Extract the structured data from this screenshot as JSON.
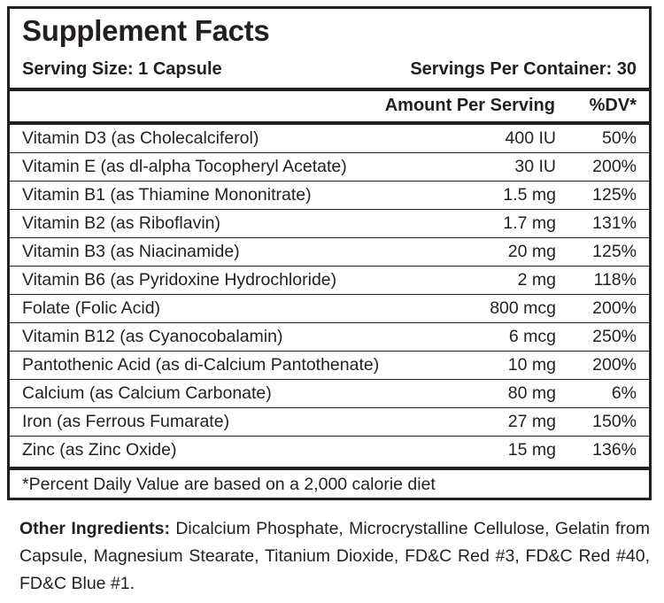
{
  "label": {
    "title": "Supplement Facts",
    "serving_size": "Serving Size: 1 Capsule",
    "servings_per_container": "Servings Per Container: 30",
    "col_amount": "Amount Per Serving",
    "col_dv": "%DV*",
    "rows": [
      {
        "name": "Vitamin D3 (as Cholecalciferol)",
        "amount": "400 IU",
        "dv": "50%"
      },
      {
        "name": "Vitamin E (as dl-alpha Tocopheryl Acetate)",
        "amount": "30 IU",
        "dv": "200%"
      },
      {
        "name": "Vitamin B1 (as Thiamine Mononitrate)",
        "amount": "1.5 mg",
        "dv": "125%"
      },
      {
        "name": "Vitamin B2 (as Riboflavin)",
        "amount": "1.7 mg",
        "dv": "131%"
      },
      {
        "name": "Vitamin B3 (as Niacinamide)",
        "amount": "20 mg",
        "dv": "125%"
      },
      {
        "name": "Vitamin B6 (as Pyridoxine Hydrochloride)",
        "amount": "2 mg",
        "dv": "118%"
      },
      {
        "name": "Folate (Folic Acid)",
        "amount": "800 mcg",
        "dv": "200%"
      },
      {
        "name": "Vitamin B12 (as Cyanocobalamin)",
        "amount": "6 mcg",
        "dv": "250%"
      },
      {
        "name": "Pantothenic Acid (as di-Calcium Pantothenate)",
        "amount": "10 mg",
        "dv": "200%"
      },
      {
        "name": "Calcium (as Calcium Carbonate)",
        "amount": "80 mg",
        "dv": "6%"
      },
      {
        "name": "Iron (as Ferrous Fumarate)",
        "amount": "27 mg",
        "dv": "150%"
      },
      {
        "name": "Zinc (as Zinc Oxide)",
        "amount": "15 mg",
        "dv": "136%"
      }
    ],
    "footnote": "*Percent Daily Value are based on a 2,000 calorie diet"
  },
  "other_ingredients": {
    "heading": "Other Ingredients:",
    "text": "Dicalcium Phosphate, Microcrystalline Cellulose, Gelatin from Capsule, Magnesium Stearate, Titanium Dioxide, FD&C Red #3, FD&C Red #40, FD&C Blue #1."
  }
}
